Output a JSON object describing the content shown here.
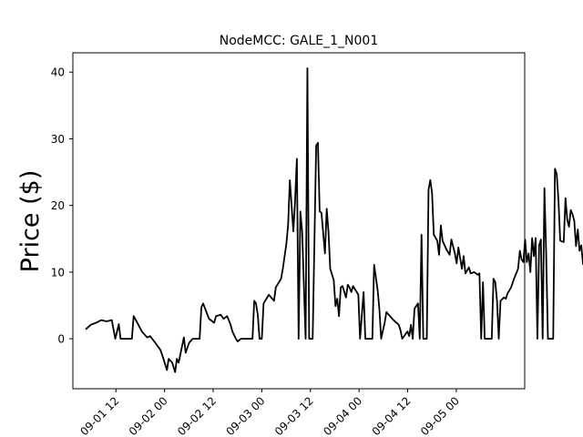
{
  "chart_data": {
    "type": "line",
    "title": "NodeMCC: GALE_1_N001",
    "xlabel": "",
    "ylabel": "Price ($)",
    "x_tick_labels": [
      "09-01 12",
      "09-02 00",
      "09-02 12",
      "09-03 00",
      "09-03 12",
      "09-04 00",
      "09-04 12",
      "09-05 00"
    ],
    "x_ticks": [
      "09-01 12:00",
      "09-02 00:00",
      "09-02 12:00",
      "09-03 00:00",
      "09-03 12:00",
      "09-04 00:00",
      "09-04 12:00",
      "09-05 00:00"
    ],
    "y_ticks": [
      0,
      10,
      20,
      30,
      40
    ],
    "xlim": [
      "09-01 01:22",
      "09-05 16:53"
    ],
    "ylim": [
      -7.5,
      42.9
    ],
    "grid": false,
    "line_color": "#000000",
    "series": [
      {
        "points": [
          [
            "09-01 04:31",
            1.4
          ],
          [
            "09-01 05:48",
            2.1
          ],
          [
            "09-01 07:06",
            2.4
          ],
          [
            "09-01 08:23",
            2.8
          ],
          [
            "09-01 09:41",
            2.6
          ],
          [
            "09-01 10:58",
            2.8
          ],
          [
            "09-01 11:50",
            0.0
          ],
          [
            "09-01 12:42",
            2.2
          ],
          [
            "09-01 13:08",
            0.0
          ],
          [
            "09-01 15:56",
            0.0
          ],
          [
            "09-01 16:22",
            3.4
          ],
          [
            "09-01 18:24",
            1.1
          ],
          [
            "09-01 19:42",
            0.2
          ],
          [
            "09-01 20:25",
            0.4
          ],
          [
            "09-01 21:42",
            -0.6
          ],
          [
            "09-01 23:00",
            -1.7
          ],
          [
            "09-01 23:43",
            -3.0
          ],
          [
            "09-02 00:35",
            -4.7
          ],
          [
            "09-02 01:01",
            -3.0
          ],
          [
            "09-02 01:53",
            -3.6
          ],
          [
            "09-02 02:36",
            -5.0
          ],
          [
            "09-02 03:02",
            -3.0
          ],
          [
            "09-02 03:28",
            -3.6
          ],
          [
            "09-02 04:46",
            0.2
          ],
          [
            "09-02 05:12",
            -2.1
          ],
          [
            "09-02 06:04",
            -0.6
          ],
          [
            "09-02 06:56",
            0.0
          ],
          [
            "09-02 08:39",
            0.0
          ],
          [
            "09-02 09:05",
            4.7
          ],
          [
            "09-02 09:31",
            5.3
          ],
          [
            "09-02 10:58",
            3.0
          ],
          [
            "09-02 12:15",
            2.4
          ],
          [
            "09-02 12:41",
            3.4
          ],
          [
            "09-02 13:51",
            3.6
          ],
          [
            "09-02 14:34",
            3.0
          ],
          [
            "09-02 15:26",
            3.4
          ],
          [
            "09-02 16:18",
            2.1
          ],
          [
            "09-02 16:44",
            1.1
          ],
          [
            "09-02 17:36",
            0.0
          ],
          [
            "09-02 18:02",
            -0.4
          ],
          [
            "09-02 18:54",
            0.0
          ],
          [
            "09-02 21:42",
            0.0
          ],
          [
            "09-02 22:08",
            5.7
          ],
          [
            "09-02 22:34",
            5.3
          ],
          [
            "09-02 23:00",
            3.6
          ],
          [
            "09-02 23:26",
            0.0
          ],
          [
            "09-03 00:00",
            0.0
          ],
          [
            "09-03 00:26",
            5.3
          ],
          [
            "09-03 01:44",
            6.6
          ],
          [
            "09-03 02:36",
            6.0
          ],
          [
            "09-03 03:01",
            5.7
          ],
          [
            "09-03 03:27",
            7.7
          ],
          [
            "09-03 04:45",
            9.0
          ],
          [
            "09-03 05:11",
            10.5
          ],
          [
            "09-03 06:03",
            14.2
          ],
          [
            "09-03 06:29",
            17.0
          ],
          [
            "09-03 06:55",
            23.8
          ],
          [
            "09-03 07:47",
            16.1
          ],
          [
            "09-03 08:13",
            20.8
          ],
          [
            "09-03 08:39",
            27.0
          ],
          [
            "09-03 09:05",
            0.0
          ],
          [
            "09-03 09:31",
            19.1
          ],
          [
            "09-03 09:57",
            16.1
          ],
          [
            "09-03 10:49",
            0.0
          ],
          [
            "09-03 11:15",
            40.6
          ],
          [
            "09-03 11:41",
            0.0
          ],
          [
            "09-03 12:33",
            0.0
          ],
          [
            "09-03 13:25",
            29.0
          ],
          [
            "09-03 13:51",
            29.4
          ],
          [
            "09-03 14:17",
            19.1
          ],
          [
            "09-03 14:43",
            18.9
          ],
          [
            "09-03 15:35",
            12.8
          ],
          [
            "09-03 16:01",
            19.5
          ],
          [
            "09-03 16:27",
            16.1
          ],
          [
            "09-03 16:53",
            10.5
          ],
          [
            "09-03 17:45",
            8.8
          ],
          [
            "09-03 18:11",
            4.9
          ],
          [
            "09-03 18:37",
            6.0
          ],
          [
            "09-03 19:03",
            3.4
          ],
          [
            "09-03 19:29",
            7.7
          ],
          [
            "09-03 19:55",
            7.9
          ],
          [
            "09-03 20:47",
            6.2
          ],
          [
            "09-03 21:13",
            8.1
          ],
          [
            "09-03 21:39",
            7.7
          ],
          [
            "09-03 22:05",
            7.0
          ],
          [
            "09-03 22:31",
            7.9
          ],
          [
            "09-03 23:49",
            6.6
          ],
          [
            "09-04 00:15",
            0.0
          ],
          [
            "09-04 01:07",
            7.0
          ],
          [
            "09-04 01:33",
            0.0
          ],
          [
            "09-04 03:17",
            0.0
          ],
          [
            "09-04 03:43",
            11.1
          ],
          [
            "09-04 04:35",
            7.3
          ],
          [
            "09-04 05:01",
            4.5
          ],
          [
            "09-04 05:27",
            0.0
          ],
          [
            "09-04 06:19",
            2.4
          ],
          [
            "09-04 06:45",
            4.0
          ],
          [
            "09-04 07:37",
            3.4
          ],
          [
            "09-04 08:29",
            2.8
          ],
          [
            "09-04 09:47",
            2.1
          ],
          [
            "09-04 10:13",
            1.3
          ],
          [
            "09-04 10:39",
            0.0
          ],
          [
            "09-04 11:57",
            1.1
          ],
          [
            "09-04 12:23",
            0.4
          ],
          [
            "09-04 12:49",
            2.1
          ],
          [
            "09-04 13:15",
            0.0
          ],
          [
            "09-04 13:41",
            4.5
          ],
          [
            "09-04 14:33",
            5.3
          ],
          [
            "09-04 14:59",
            0.0
          ],
          [
            "09-04 15:25",
            15.6
          ],
          [
            "09-04 15:51",
            0.0
          ],
          [
            "09-04 16:43",
            0.0
          ],
          [
            "09-04 17:09",
            22.4
          ],
          [
            "09-04 17:35",
            23.8
          ],
          [
            "09-04 18:01",
            21.9
          ],
          [
            "09-04 18:27",
            15.6
          ],
          [
            "09-04 19:19",
            14.7
          ],
          [
            "09-04 19:45",
            12.6
          ],
          [
            "09-04 20:11",
            17.0
          ],
          [
            "09-04 20:37",
            14.7
          ],
          [
            "09-04 21:29",
            13.5
          ],
          [
            "09-04 22:21",
            12.6
          ],
          [
            "09-04 22:47",
            14.9
          ],
          [
            "09-04 23:39",
            12.8
          ],
          [
            "09-05 00:05",
            11.3
          ],
          [
            "09-05 00:31",
            13.7
          ],
          [
            "09-05 01:23",
            10.5
          ],
          [
            "09-05 01:49",
            12.4
          ],
          [
            "09-05 02:15",
            9.8
          ],
          [
            "09-05 03:07",
            10.7
          ],
          [
            "09-05 03:33",
            9.8
          ],
          [
            "09-05 04:25",
            10.0
          ],
          [
            "09-05 05:17",
            9.6
          ],
          [
            "09-05 05:43",
            9.8
          ],
          [
            "09-05 06:09",
            0.0
          ],
          [
            "09-05 06:35",
            8.5
          ],
          [
            "09-05 07:01",
            0.0
          ],
          [
            "09-05 08:45",
            0.0
          ],
          [
            "09-05 09:11",
            9.0
          ],
          [
            "09-05 09:37",
            8.5
          ],
          [
            "09-05 10:03",
            5.7
          ],
          [
            "09-05 10:29",
            0.0
          ],
          [
            "09-05 10:55",
            5.7
          ],
          [
            "09-05 11:47",
            6.2
          ],
          [
            "09-05 12:13",
            6.0
          ],
          [
            "09-05 12:39",
            6.8
          ],
          [
            "09-05 13:31",
            7.7
          ],
          [
            "09-05 14:23",
            9.2
          ],
          [
            "09-05 15:15",
            10.5
          ],
          [
            "09-05 15:41",
            13.2
          ],
          [
            "09-05 16:07",
            11.9
          ],
          [
            "09-05 16:33",
            11.5
          ],
          [
            "09-05 16:59",
            14.9
          ],
          [
            "09-05 17:25",
            11.5
          ],
          [
            "09-05 17:51",
            12.8
          ],
          [
            "09-05 18:17",
            10.0
          ],
          [
            "09-05 18:43",
            15.1
          ],
          [
            "09-05 19:09",
            12.4
          ],
          [
            "09-05 19:35",
            15.1
          ],
          [
            "09-05 20:01",
            0.0
          ],
          [
            "09-05 20:27",
            14.0
          ],
          [
            "09-05 20:53",
            14.9
          ],
          [
            "09-05 21:19",
            0.0
          ],
          [
            "09-05 21:45",
            22.6
          ],
          [
            "09-05 22:11",
            12.8
          ],
          [
            "09-05 22:37",
            0.0
          ],
          [
            "09-05 23:55",
            0.0
          ],
          [
            "09-06 00:21",
            25.5
          ],
          [
            "09-06 00:47",
            24.7
          ],
          [
            "09-06 01:13",
            20.8
          ],
          [
            "09-06 01:39",
            14.7
          ],
          [
            "09-06 02:31",
            14.5
          ],
          [
            "09-06 02:57",
            21.1
          ],
          [
            "09-06 03:23",
            17.9
          ],
          [
            "09-06 03:49",
            16.8
          ],
          [
            "09-06 04:15",
            19.3
          ],
          [
            "09-06 04:41",
            18.7
          ],
          [
            "09-06 05:07",
            17.7
          ],
          [
            "09-06 05:33",
            13.9
          ],
          [
            "09-06 05:59",
            16.4
          ],
          [
            "09-06 06:25",
            13.2
          ],
          [
            "09-06 06:51",
            14.0
          ],
          [
            "09-06 07:17",
            11.1
          ]
        ]
      }
    ]
  }
}
